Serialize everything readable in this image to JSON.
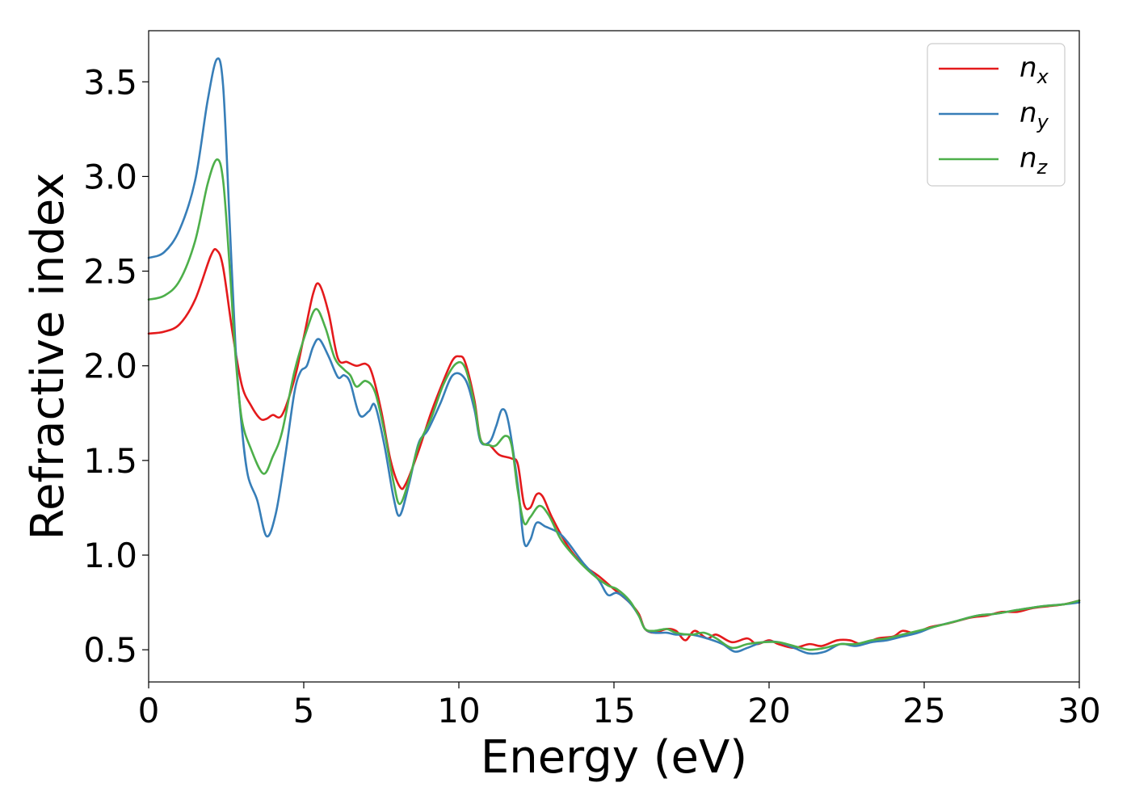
{
  "chart_data": {
    "type": "line",
    "xlabel": "Energy (eV)",
    "ylabel": "Refractive index",
    "xlim": [
      0,
      30
    ],
    "ylim": [
      0.33,
      3.77
    ],
    "xticks": [
      0,
      5,
      10,
      15,
      20,
      25,
      30
    ],
    "xtick_labels": [
      "0",
      "5",
      "10",
      "15",
      "20",
      "25",
      "30"
    ],
    "yticks": [
      0.5,
      1.0,
      1.5,
      2.0,
      2.5,
      3.0,
      3.5
    ],
    "ytick_labels": [
      "0.5",
      "1.0",
      "1.5",
      "2.0",
      "2.5",
      "3.0",
      "3.5"
    ],
    "grid": false,
    "legend_position": "top-right",
    "series": [
      {
        "name": "n_x",
        "label_base": "n",
        "label_sub": "x",
        "color": "#e41a1c",
        "points": [
          [
            0,
            2.17
          ],
          [
            0.5,
            2.18
          ],
          [
            1.0,
            2.22
          ],
          [
            1.5,
            2.35
          ],
          [
            2.0,
            2.58
          ],
          [
            2.2,
            2.61
          ],
          [
            2.4,
            2.52
          ],
          [
            2.7,
            2.18
          ],
          [
            3.0,
            1.9
          ],
          [
            3.3,
            1.79
          ],
          [
            3.6,
            1.72
          ],
          [
            3.8,
            1.72
          ],
          [
            4.0,
            1.74
          ],
          [
            4.3,
            1.74
          ],
          [
            4.7,
            1.93
          ],
          [
            5.0,
            2.15
          ],
          [
            5.3,
            2.38
          ],
          [
            5.5,
            2.43
          ],
          [
            5.8,
            2.28
          ],
          [
            6.1,
            2.04
          ],
          [
            6.4,
            2.02
          ],
          [
            6.7,
            2.0
          ],
          [
            7.0,
            2.01
          ],
          [
            7.2,
            1.96
          ],
          [
            7.5,
            1.76
          ],
          [
            7.8,
            1.5
          ],
          [
            8.1,
            1.36
          ],
          [
            8.3,
            1.38
          ],
          [
            8.7,
            1.55
          ],
          [
            9.1,
            1.75
          ],
          [
            9.5,
            1.92
          ],
          [
            9.8,
            2.03
          ],
          [
            10.0,
            2.05
          ],
          [
            10.2,
            2.02
          ],
          [
            10.5,
            1.82
          ],
          [
            10.7,
            1.61
          ],
          [
            11.0,
            1.58
          ],
          [
            11.3,
            1.53
          ],
          [
            11.7,
            1.51
          ],
          [
            11.9,
            1.48
          ],
          [
            12.1,
            1.27
          ],
          [
            12.3,
            1.25
          ],
          [
            12.5,
            1.32
          ],
          [
            12.7,
            1.31
          ],
          [
            13.0,
            1.2
          ],
          [
            13.5,
            1.05
          ],
          [
            14.0,
            0.95
          ],
          [
            14.5,
            0.89
          ],
          [
            15.0,
            0.82
          ],
          [
            15.5,
            0.75
          ],
          [
            15.8,
            0.69
          ],
          [
            16.0,
            0.61
          ],
          [
            16.3,
            0.59
          ],
          [
            16.7,
            0.61
          ],
          [
            17.0,
            0.6
          ],
          [
            17.3,
            0.55
          ],
          [
            17.6,
            0.6
          ],
          [
            18.0,
            0.56
          ],
          [
            18.3,
            0.58
          ],
          [
            18.8,
            0.54
          ],
          [
            19.3,
            0.56
          ],
          [
            19.6,
            0.53
          ],
          [
            20.0,
            0.55
          ],
          [
            20.3,
            0.53
          ],
          [
            20.8,
            0.51
          ],
          [
            21.3,
            0.53
          ],
          [
            21.7,
            0.52
          ],
          [
            22.2,
            0.55
          ],
          [
            22.6,
            0.55
          ],
          [
            23.0,
            0.53
          ],
          [
            23.5,
            0.56
          ],
          [
            24.0,
            0.57
          ],
          [
            24.3,
            0.6
          ],
          [
            24.7,
            0.59
          ],
          [
            25.2,
            0.62
          ],
          [
            25.8,
            0.64
          ],
          [
            26.5,
            0.67
          ],
          [
            27.0,
            0.68
          ],
          [
            27.5,
            0.7
          ],
          [
            28.0,
            0.7
          ],
          [
            28.5,
            0.72
          ],
          [
            29.0,
            0.73
          ],
          [
            29.5,
            0.74
          ],
          [
            30.0,
            0.76
          ]
        ]
      },
      {
        "name": "n_y",
        "label_base": "n",
        "label_sub": "y",
        "color": "#377eb8",
        "points": [
          [
            0,
            2.57
          ],
          [
            0.5,
            2.6
          ],
          [
            1.0,
            2.72
          ],
          [
            1.5,
            2.98
          ],
          [
            1.9,
            3.4
          ],
          [
            2.2,
            3.62
          ],
          [
            2.4,
            3.48
          ],
          [
            2.6,
            2.8
          ],
          [
            2.8,
            2.1
          ],
          [
            3.0,
            1.68
          ],
          [
            3.2,
            1.42
          ],
          [
            3.5,
            1.29
          ],
          [
            3.8,
            1.1
          ],
          [
            4.1,
            1.22
          ],
          [
            4.4,
            1.52
          ],
          [
            4.7,
            1.86
          ],
          [
            4.9,
            1.97
          ],
          [
            5.1,
            2.0
          ],
          [
            5.3,
            2.1
          ],
          [
            5.5,
            2.14
          ],
          [
            5.8,
            2.05
          ],
          [
            6.1,
            1.94
          ],
          [
            6.3,
            1.95
          ],
          [
            6.5,
            1.91
          ],
          [
            6.8,
            1.74
          ],
          [
            7.1,
            1.76
          ],
          [
            7.3,
            1.79
          ],
          [
            7.6,
            1.58
          ],
          [
            7.9,
            1.3
          ],
          [
            8.1,
            1.21
          ],
          [
            8.4,
            1.38
          ],
          [
            8.7,
            1.59
          ],
          [
            9.0,
            1.66
          ],
          [
            9.4,
            1.8
          ],
          [
            9.8,
            1.95
          ],
          [
            10.2,
            1.93
          ],
          [
            10.5,
            1.77
          ],
          [
            10.7,
            1.6
          ],
          [
            11.0,
            1.6
          ],
          [
            11.2,
            1.68
          ],
          [
            11.4,
            1.77
          ],
          [
            11.6,
            1.7
          ],
          [
            11.9,
            1.37
          ],
          [
            12.1,
            1.07
          ],
          [
            12.3,
            1.08
          ],
          [
            12.5,
            1.17
          ],
          [
            12.8,
            1.15
          ],
          [
            13.2,
            1.12
          ],
          [
            13.5,
            1.07
          ],
          [
            14.0,
            0.96
          ],
          [
            14.5,
            0.87
          ],
          [
            14.8,
            0.79
          ],
          [
            15.1,
            0.8
          ],
          [
            15.5,
            0.75
          ],
          [
            15.8,
            0.68
          ],
          [
            16.0,
            0.61
          ],
          [
            16.3,
            0.59
          ],
          [
            16.7,
            0.59
          ],
          [
            17.0,
            0.58
          ],
          [
            17.5,
            0.58
          ],
          [
            18.0,
            0.56
          ],
          [
            18.5,
            0.53
          ],
          [
            18.9,
            0.49
          ],
          [
            19.3,
            0.51
          ],
          [
            19.8,
            0.54
          ],
          [
            20.3,
            0.54
          ],
          [
            20.8,
            0.51
          ],
          [
            21.3,
            0.48
          ],
          [
            21.8,
            0.49
          ],
          [
            22.3,
            0.53
          ],
          [
            22.8,
            0.52
          ],
          [
            23.3,
            0.54
          ],
          [
            23.8,
            0.55
          ],
          [
            24.3,
            0.57
          ],
          [
            24.8,
            0.59
          ],
          [
            25.3,
            0.62
          ],
          [
            26.0,
            0.65
          ],
          [
            26.7,
            0.68
          ],
          [
            27.3,
            0.69
          ],
          [
            28.0,
            0.71
          ],
          [
            28.8,
            0.73
          ],
          [
            29.5,
            0.74
          ],
          [
            30.0,
            0.75
          ]
        ]
      },
      {
        "name": "n_z",
        "label_base": "n",
        "label_sub": "z",
        "color": "#4daf4a",
        "points": [
          [
            0,
            2.35
          ],
          [
            0.5,
            2.37
          ],
          [
            1.0,
            2.45
          ],
          [
            1.5,
            2.66
          ],
          [
            1.9,
            2.96
          ],
          [
            2.2,
            3.09
          ],
          [
            2.4,
            2.98
          ],
          [
            2.6,
            2.55
          ],
          [
            2.8,
            2.05
          ],
          [
            3.0,
            1.72
          ],
          [
            3.3,
            1.56
          ],
          [
            3.7,
            1.43
          ],
          [
            4.0,
            1.52
          ],
          [
            4.3,
            1.65
          ],
          [
            4.7,
            1.97
          ],
          [
            5.1,
            2.19
          ],
          [
            5.4,
            2.3
          ],
          [
            5.7,
            2.2
          ],
          [
            6.0,
            2.04
          ],
          [
            6.3,
            1.98
          ],
          [
            6.5,
            1.95
          ],
          [
            6.7,
            1.89
          ],
          [
            7.0,
            1.92
          ],
          [
            7.3,
            1.86
          ],
          [
            7.6,
            1.65
          ],
          [
            7.9,
            1.38
          ],
          [
            8.1,
            1.27
          ],
          [
            8.4,
            1.4
          ],
          [
            8.7,
            1.58
          ],
          [
            9.1,
            1.72
          ],
          [
            9.5,
            1.9
          ],
          [
            9.9,
            2.01
          ],
          [
            10.2,
            1.99
          ],
          [
            10.5,
            1.8
          ],
          [
            10.7,
            1.61
          ],
          [
            11.0,
            1.58
          ],
          [
            11.2,
            1.58
          ],
          [
            11.5,
            1.63
          ],
          [
            11.7,
            1.58
          ],
          [
            11.9,
            1.34
          ],
          [
            12.1,
            1.17
          ],
          [
            12.3,
            1.2
          ],
          [
            12.6,
            1.26
          ],
          [
            12.9,
            1.21
          ],
          [
            13.3,
            1.08
          ],
          [
            13.8,
            0.98
          ],
          [
            14.3,
            0.9
          ],
          [
            14.8,
            0.84
          ],
          [
            15.1,
            0.82
          ],
          [
            15.5,
            0.76
          ],
          [
            15.8,
            0.68
          ],
          [
            16.0,
            0.61
          ],
          [
            16.3,
            0.6
          ],
          [
            16.7,
            0.61
          ],
          [
            17.0,
            0.59
          ],
          [
            17.5,
            0.58
          ],
          [
            17.9,
            0.59
          ],
          [
            18.3,
            0.56
          ],
          [
            18.8,
            0.51
          ],
          [
            19.3,
            0.53
          ],
          [
            19.8,
            0.54
          ],
          [
            20.3,
            0.54
          ],
          [
            20.8,
            0.52
          ],
          [
            21.3,
            0.5
          ],
          [
            21.8,
            0.51
          ],
          [
            22.3,
            0.53
          ],
          [
            22.8,
            0.53
          ],
          [
            23.3,
            0.55
          ],
          [
            23.8,
            0.56
          ],
          [
            24.3,
            0.58
          ],
          [
            24.8,
            0.6
          ],
          [
            25.3,
            0.62
          ],
          [
            26.0,
            0.65
          ],
          [
            26.7,
            0.68
          ],
          [
            27.3,
            0.69
          ],
          [
            28.0,
            0.71
          ],
          [
            28.8,
            0.73
          ],
          [
            29.5,
            0.74
          ],
          [
            30.0,
            0.76
          ]
        ]
      }
    ]
  }
}
